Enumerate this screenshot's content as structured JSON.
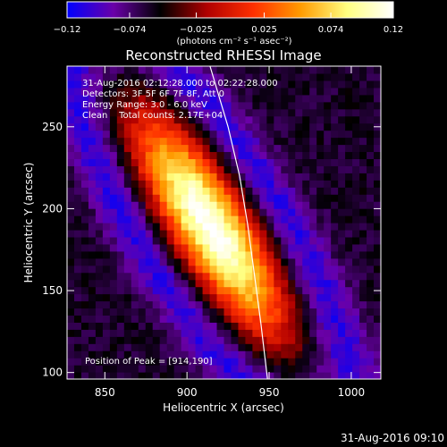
{
  "chart_data": {
    "type": "heatmap",
    "title": "Reconstructed RHESSI Image",
    "xlabel": "Heliocentric X (arcsec)",
    "ylabel": "Heliocentric Y (arcsec)",
    "xlim": [
      827,
      1018
    ],
    "ylim": [
      96,
      287
    ],
    "x_ticks": [
      850,
      900,
      950,
      1000
    ],
    "y_ticks": [
      100,
      150,
      200,
      250
    ],
    "x_tick_labels": [
      "850",
      "900",
      "950",
      "1000"
    ],
    "y_tick_labels": [
      "100",
      "150",
      "200",
      "250"
    ],
    "colorbar": {
      "range": [
        -0.12,
        0.12
      ],
      "ticks": [
        -0.12,
        -0.074,
        -0.025,
        0.025,
        0.074,
        0.12
      ],
      "tick_labels": [
        "−0.12",
        "−0.074",
        "−0.025",
        "0.025",
        "0.074",
        "0.12"
      ],
      "unit_label": "(photons cm⁻² s⁻¹ asec⁻²)",
      "colors": [
        "#0000ff",
        "#6a00a8",
        "#000000",
        "#b00000",
        "#ff3000",
        "#ff9a00",
        "#ffff80",
        "#ffffff"
      ]
    },
    "annotations": [
      "31-Aug-2016 02:12:28.000 to 02:22:28.000",
      "Detectors: 3F 5F 6F 7F 8F, Att 0",
      "Energy Range: 3.0 - 6.0 keV",
      "Clean    Total counts: 2.17E+04"
    ],
    "peak_label": "Position of Peak = [914,190]",
    "peak": [
      914,
      190
    ],
    "source": {
      "peak_value": 0.12,
      "angle_deg": 58,
      "sigma_major": 55,
      "sigma_minor": 16,
      "background": -0.06
    },
    "limb_points": [
      [
        914,
        287
      ],
      [
        925,
        250
      ],
      [
        932,
        220
      ],
      [
        937,
        190
      ],
      [
        941,
        160
      ],
      [
        945,
        130
      ],
      [
        949,
        96
      ]
    ],
    "timestamp": "31-Aug-2016 09:10"
  }
}
